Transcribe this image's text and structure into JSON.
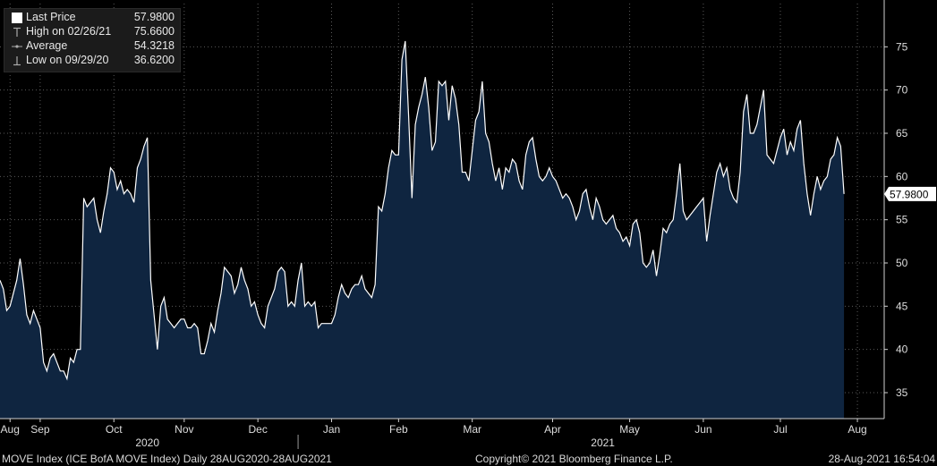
{
  "legend": {
    "last_label": "Last Price",
    "last_value": "57.9800",
    "high_label": "High on 02/26/21",
    "high_value": "75.6600",
    "avg_label": "Average",
    "avg_value": "54.3218",
    "low_label": "Low on 09/29/20",
    "low_value": "36.6200"
  },
  "last_price_tag": "57.9800",
  "footer": {
    "left": "MOVE Index (ICE BofA MOVE Index)  Daily 28AUG2020-28AUG2021",
    "center": "Copyright© 2021 Bloomberg Finance L.P.",
    "right": "28-Aug-2021 16:54:04"
  },
  "colors": {
    "background": "#000000",
    "area_fill": "#0f2540",
    "line": "#ffffff",
    "grid": "#5a5a5a"
  },
  "chart_data": {
    "type": "area",
    "ylim": [
      32,
      80
    ],
    "yticks": [
      35,
      40,
      45,
      50,
      55,
      60,
      65,
      70,
      75
    ],
    "xlim": [
      0,
      264
    ],
    "month_labels": [
      {
        "label": "Aug",
        "x": 3
      },
      {
        "label": "Sep",
        "x": 12
      },
      {
        "label": "Oct",
        "x": 34
      },
      {
        "label": "Nov",
        "x": 55
      },
      {
        "label": "Dec",
        "x": 77
      },
      {
        "label": "Jan",
        "x": 99
      },
      {
        "label": "Feb",
        "x": 119
      },
      {
        "label": "Mar",
        "x": 141
      },
      {
        "label": "Apr",
        "x": 165
      },
      {
        "label": "May",
        "x": 188
      },
      {
        "label": "Jun",
        "x": 210
      },
      {
        "label": "Jul",
        "x": 233
      },
      {
        "label": "Aug",
        "x": 256
      }
    ],
    "year_labels": [
      {
        "label": "2020",
        "x": 44
      },
      {
        "label": "2021",
        "x": 180
      }
    ],
    "year_divider_x": 89,
    "gridlines": "dotted",
    "series": [
      {
        "values": [
          48.0,
          47.0,
          44.5,
          45.0,
          46.5,
          48.0,
          50.5,
          47.5,
          44.0,
          43.0,
          44.5,
          43.5,
          42.5,
          38.5,
          37.5,
          39.0,
          39.5,
          38.5,
          37.5,
          37.5,
          36.6,
          39.0,
          38.5,
          40.0,
          40.0,
          57.5,
          56.5,
          57.0,
          57.5,
          55.0,
          53.5,
          56.0,
          58.0,
          61.0,
          60.5,
          58.5,
          59.5,
          58.0,
          58.5,
          58.0,
          57.0,
          61.0,
          62.0,
          63.5,
          64.5,
          48.0,
          44.0,
          40.0,
          45.0,
          46.0,
          43.5,
          43.0,
          42.5,
          43.0,
          43.5,
          43.5,
          42.5,
          42.5,
          43.0,
          42.5,
          39.5,
          39.5,
          41.0,
          43.0,
          42.0,
          44.5,
          46.5,
          49.5,
          49.0,
          48.5,
          46.5,
          47.5,
          49.5,
          48.0,
          47.0,
          45.0,
          45.5,
          44.0,
          43.0,
          42.5,
          45.0,
          46.0,
          47.0,
          49.0,
          49.5,
          49.0,
          45.0,
          45.5,
          45.0,
          48.0,
          50.0,
          45.0,
          45.5,
          45.0,
          45.5,
          42.5,
          43.0,
          43.0,
          43.0,
          43.0,
          44.0,
          46.0,
          47.5,
          46.5,
          46.0,
          47.0,
          47.5,
          47.5,
          48.5,
          47.0,
          46.5,
          46.0,
          47.5,
          56.5,
          56.0,
          58.0,
          61.0,
          63.0,
          62.5,
          62.5,
          73.5,
          75.66,
          67.0,
          57.5,
          66.0,
          68.0,
          69.5,
          71.5,
          68.0,
          63.0,
          64.0,
          71.0,
          70.5,
          71.0,
          66.5,
          70.5,
          69.0,
          66.0,
          60.5,
          60.5,
          59.5,
          63.0,
          66.5,
          67.5,
          71.0,
          65.0,
          64.0,
          61.5,
          59.5,
          61.0,
          58.5,
          61.0,
          60.5,
          62.0,
          61.5,
          59.5,
          58.5,
          62.5,
          64.0,
          64.5,
          62.0,
          60.0,
          59.5,
          60.0,
          61.0,
          60.0,
          59.5,
          58.5,
          57.5,
          58.0,
          57.5,
          56.5,
          55.0,
          56.0,
          58.0,
          58.5,
          56.5,
          55.0,
          57.5,
          56.5,
          55.0,
          54.5,
          55.0,
          55.5,
          54.0,
          53.5,
          52.5,
          53.0,
          52.0,
          54.5,
          55.0,
          53.5,
          50.0,
          49.5,
          50.0,
          51.5,
          48.5,
          51.0,
          54.0,
          53.5,
          54.5,
          55.0,
          58.0,
          61.5,
          56.0,
          55.0,
          55.5,
          56.0,
          56.5,
          57.0,
          57.5,
          52.5,
          55.5,
          58.0,
          60.5,
          61.5,
          60.0,
          61.0,
          58.5,
          57.5,
          57.0,
          60.5,
          67.5,
          69.5,
          65.0,
          65.0,
          66.0,
          68.0,
          70.0,
          62.5,
          62.0,
          61.5,
          63.0,
          64.5,
          65.5,
          62.5,
          64.0,
          63.0,
          65.5,
          66.5,
          61.5,
          58.0,
          55.5,
          58.0,
          60.0,
          58.5,
          59.5,
          60.0,
          62.0,
          62.5,
          64.5,
          63.5,
          57.98
        ]
      }
    ]
  }
}
